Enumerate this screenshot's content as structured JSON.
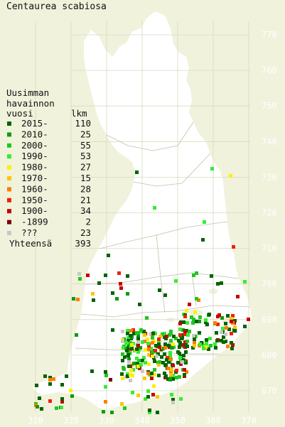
{
  "title": "Centaurea scabiosa",
  "legend": {
    "heading": [
      "Uusimman",
      "havainnon"
    ],
    "col_year": "vuosi",
    "col_count": "lkm",
    "rows": [
      {
        "label": "2015-",
        "count": "110",
        "color": "#006400"
      },
      {
        "label": "2010-",
        "count": "25",
        "color": "#119a11"
      },
      {
        "label": "2000-",
        "count": "55",
        "color": "#1ec81e"
      },
      {
        "label": "1990-",
        "count": "53",
        "color": "#33ee33"
      },
      {
        "label": "1980-",
        "count": "27",
        "color": "#ffee00"
      },
      {
        "label": "1970-",
        "count": "15",
        "color": "#ffc400"
      },
      {
        "label": "1960-",
        "count": "28",
        "color": "#ff7d00"
      },
      {
        "label": "1950-",
        "count": "21",
        "color": "#ee2200"
      },
      {
        "label": "1900-",
        "count": "34",
        "color": "#c40000"
      },
      {
        "label": "-1899",
        "count": "2",
        "color": "#7a0000"
      },
      {
        "label": "???",
        "count": "23",
        "color": "#c8c8c8"
      }
    ],
    "total_label": "Yhteensä",
    "total_count": "393"
  },
  "axes": {
    "x_ticks": [
      "310",
      "320",
      "330",
      "340",
      "350",
      "360",
      "370"
    ],
    "y_ticks": [
      "770",
      "760",
      "750",
      "740",
      "730",
      "720",
      "710",
      "700",
      "690",
      "680",
      "670"
    ]
  }
}
